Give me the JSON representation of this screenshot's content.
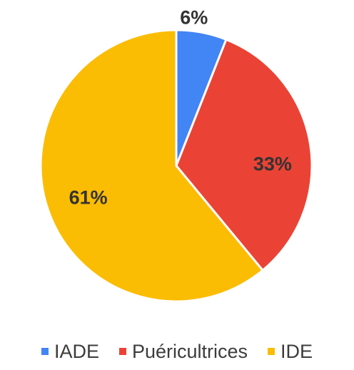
{
  "chart_data": {
    "type": "pie",
    "categories": [
      "IADE",
      "Puéricultrices",
      "IDE"
    ],
    "values": [
      6,
      33,
      61
    ],
    "labels": [
      "6%",
      "33%",
      "61%"
    ],
    "colors": [
      "#4285f4",
      "#ea4335",
      "#fbbc04"
    ],
    "title": "",
    "legend_position": "bottom",
    "start_angle": "top, clockwise"
  },
  "legend": {
    "items": [
      {
        "label": "IADE",
        "color": "#4285f4"
      },
      {
        "label": "Puéricultrices",
        "color": "#ea4335"
      },
      {
        "label": "IDE",
        "color": "#fbbc04"
      }
    ]
  }
}
